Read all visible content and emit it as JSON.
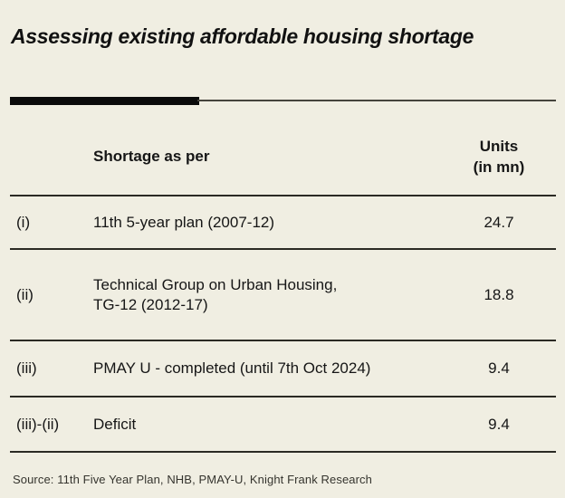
{
  "title": "Assessing existing affordable housing shortage",
  "table": {
    "header": {
      "desc_label": "Shortage as per",
      "units_line1": "Units",
      "units_line2": "(in mn)"
    },
    "rows": [
      {
        "label": "(i)",
        "desc": "11th 5-year plan (2007-12)",
        "value": "24.7"
      },
      {
        "label": "(ii)",
        "desc": "Technical Group on Urban Housing,\nTG-12 (2012-17)",
        "value": "18.8"
      },
      {
        "label": "(iii)",
        "desc": "PMAY U - completed (until 7th Oct 2024)",
        "value": "9.4"
      },
      {
        "label": "(iii)-(ii)",
        "desc": "Deficit",
        "value": "9.4"
      }
    ]
  },
  "source": "Source: 11th Five Year Plan, NHB, PMAY-U, Knight Frank Research",
  "colors": {
    "background": "#f0eee2",
    "text": "#161616",
    "rule": "#2b2a24",
    "accent_bar": "#0b0b0b"
  },
  "chart_data": {
    "type": "table",
    "title": "Assessing existing affordable housing shortage",
    "columns": [
      "",
      "Shortage as per",
      "Units (in mn)"
    ],
    "rows": [
      [
        "(i)",
        "11th 5-year plan (2007-12)",
        24.7
      ],
      [
        "(ii)",
        "Technical Group on Urban Housing, TG-12 (2012-17)",
        18.8
      ],
      [
        "(iii)",
        "PMAY U - completed (until 7th Oct 2024)",
        9.4
      ],
      [
        "(iii)-(ii)",
        "Deficit",
        9.4
      ]
    ],
    "source": "Source: 11th Five Year Plan, NHB, PMAY-U, Knight Frank Research"
  }
}
